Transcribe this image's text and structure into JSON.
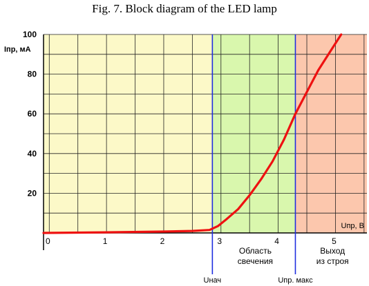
{
  "chart_data": {
    "type": "line",
    "title": "Fig. 7. Block diagram of the LED lamp",
    "xlabel": "Uпр, В",
    "ylabel": "Iпр, мА",
    "xlim": [
      -0.1,
      5.55
    ],
    "ylim": [
      0,
      100
    ],
    "x_ticks": [
      "0",
      "1",
      "2",
      "3",
      "4",
      "5"
    ],
    "y_ticks": [
      "20",
      "40",
      "60",
      "80",
      "100"
    ],
    "grid": true,
    "zones": [
      {
        "label": "",
        "from": -0.1,
        "to": 2.85,
        "color": "#fcf9c8"
      },
      {
        "label": "Область\nсвечения",
        "from": 2.85,
        "to": 4.3,
        "color": "#d9f7ad"
      },
      {
        "label": "Выход\nиз строя",
        "from": 4.3,
        "to": 5.55,
        "color": "#fcc7ad"
      }
    ],
    "markers": [
      {
        "label": "Uнач",
        "x": 2.85,
        "color": "#1f2ee0"
      },
      {
        "label": "Uпр. макс",
        "x": 4.3,
        "color": "#1f2ee0"
      }
    ],
    "series": [
      {
        "color": "#ee1111",
        "x": [
          -0.1,
          1.0,
          2.0,
          2.5,
          2.8,
          2.95,
          3.1,
          3.3,
          3.5,
          3.7,
          3.9,
          4.1,
          4.3,
          4.5,
          4.7,
          4.9,
          5.1
        ],
        "y": [
          0,
          0.3,
          0.7,
          1,
          1.5,
          3.5,
          7,
          12,
          19,
          27,
          36,
          47,
          60,
          71,
          82,
          91,
          100
        ]
      }
    ]
  }
}
